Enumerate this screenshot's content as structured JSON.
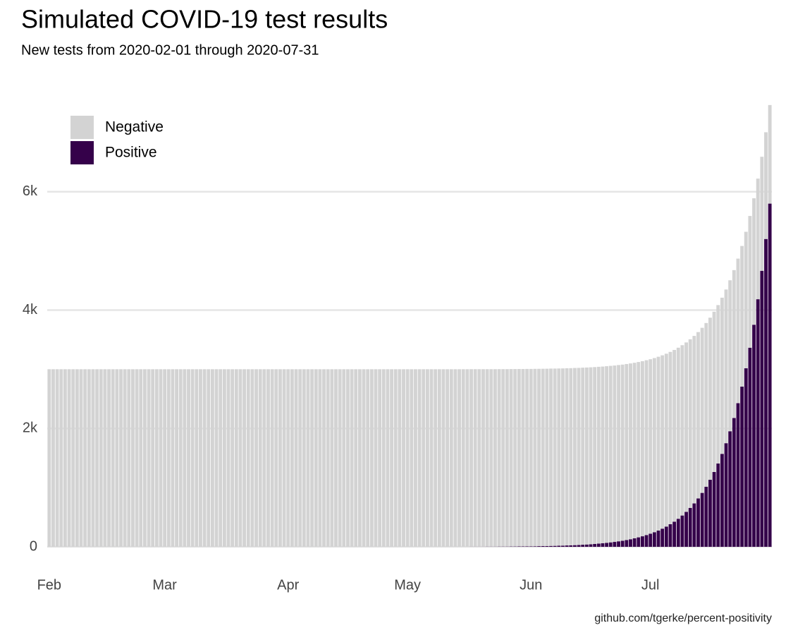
{
  "chart_data": {
    "type": "stacked-bar",
    "title": "Simulated COVID-19 test results",
    "subtitle": "New tests from 2020-02-01 through 2020-07-31",
    "caption": "github.com/tgerke/percent-positivity",
    "categories": [
      "Feb",
      null,
      null,
      null,
      null,
      null,
      null,
      null,
      null,
      null,
      null,
      null,
      null,
      null,
      null,
      null,
      null,
      null,
      null,
      null,
      null,
      null,
      null,
      null,
      null,
      null,
      null,
      null,
      null,
      "Mar",
      null,
      null,
      null,
      null,
      null,
      null,
      null,
      null,
      null,
      null,
      null,
      null,
      null,
      null,
      null,
      null,
      null,
      null,
      null,
      null,
      null,
      null,
      null,
      null,
      null,
      null,
      null,
      null,
      null,
      null,
      "Apr",
      null,
      null,
      null,
      null,
      null,
      null,
      null,
      null,
      null,
      null,
      null,
      null,
      null,
      null,
      null,
      null,
      null,
      null,
      null,
      null,
      null,
      null,
      null,
      null,
      null,
      null,
      null,
      null,
      null,
      "May",
      null,
      null,
      null,
      null,
      null,
      null,
      null,
      null,
      null,
      null,
      null,
      null,
      null,
      null,
      null,
      null,
      null,
      null,
      null,
      null,
      null,
      null,
      null,
      null,
      null,
      null,
      null,
      null,
      null,
      null,
      "Jun",
      null,
      null,
      null,
      null,
      null,
      null,
      null,
      null,
      null,
      null,
      null,
      null,
      null,
      null,
      null,
      null,
      null,
      null,
      null,
      null,
      null,
      null,
      null,
      null,
      null,
      null,
      null,
      null,
      null,
      "Jul",
      null,
      null,
      null,
      null,
      null,
      null,
      null,
      null,
      null,
      null,
      null,
      null,
      null,
      null,
      null,
      null,
      null,
      null,
      null,
      null,
      null,
      null,
      null,
      null,
      null,
      null,
      null,
      null,
      null,
      null
    ],
    "series": [
      {
        "name": "Negative",
        "color": "#d3d3d3",
        "values": [
          3000,
          3000,
          3000,
          3000,
          3000,
          3000,
          3000,
          3000,
          3000,
          3000,
          3000,
          3000,
          3000,
          3000,
          3000,
          3000,
          3000,
          3000,
          3000,
          3000,
          3000,
          3000,
          3000,
          3000,
          3000,
          3000,
          3000,
          3000,
          3000,
          3000,
          3000,
          3000,
          3000,
          3000,
          3000,
          3000,
          3000,
          3000,
          3000,
          3000,
          3000,
          3000,
          3000,
          3000,
          3000,
          3000,
          3000,
          3000,
          3000,
          3000,
          3000,
          3000,
          3000,
          3000,
          3000,
          3000,
          3000,
          3000,
          3000,
          3000,
          3000,
          3000,
          3000,
          3000,
          3000,
          3000,
          3000,
          3000,
          3000,
          3000,
          3000,
          3000,
          3000,
          3000,
          3000,
          3000,
          3000,
          3000,
          3000,
          3000,
          3000,
          3000,
          3000,
          3000,
          3000,
          3000,
          3000,
          3000,
          3000,
          3000,
          3000,
          3000,
          3000,
          3000,
          3000,
          3000,
          3000,
          3000,
          3000,
          3000,
          3000,
          3000,
          3000,
          3000,
          3000,
          3000,
          3000,
          3000,
          3000,
          3000,
          2999,
          2999,
          2999,
          2999,
          2999,
          2999,
          2999,
          2999,
          2999,
          2998,
          2998,
          2998,
          2998,
          2997,
          2997,
          2997,
          2997,
          2996,
          2996,
          2995,
          2995,
          2994,
          2994,
          2993,
          2992,
          2991,
          2990,
          2989,
          2988,
          2986,
          2985,
          2983,
          2981,
          2979,
          2976,
          2974,
          2971,
          2967,
          2963,
          2959,
          2954,
          2949,
          2943,
          2937,
          2929,
          2921,
          2912,
          2902,
          2891,
          2878,
          2864,
          2849,
          2831,
          2812,
          2790,
          2766,
          2739,
          2709,
          2676,
          2639,
          2597,
          2551,
          2499,
          2442,
          2377,
          2306,
          2226,
          2137,
          2038,
          1927,
          1804,
          1666
        ]
      },
      {
        "name": "Positive",
        "color": "#35014a",
        "values": [
          1,
          1,
          1,
          1,
          1,
          1,
          1,
          1,
          1,
          1,
          1,
          1,
          1,
          1,
          1,
          1,
          1,
          1,
          1,
          1,
          1,
          1,
          1,
          1,
          1,
          1,
          1,
          1,
          1,
          1,
          1,
          1,
          1,
          1,
          1,
          1,
          1,
          1,
          1,
          1,
          1,
          1,
          1,
          1,
          1,
          1,
          1,
          1,
          1,
          1,
          1,
          1,
          1,
          1,
          1,
          1,
          1,
          1,
          1,
          1,
          1,
          1,
          1,
          1,
          1,
          1,
          1,
          1,
          1,
          1,
          1,
          1,
          1,
          1,
          1,
          1,
          1,
          1,
          1,
          1,
          1,
          1,
          1,
          1,
          1,
          1,
          1,
          1,
          1,
          1,
          1,
          1,
          1,
          1,
          1,
          1,
          1,
          1,
          1,
          1,
          1,
          1,
          1,
          1,
          1,
          1,
          2,
          2,
          2,
          2,
          3,
          3,
          3,
          4,
          4,
          4,
          5,
          5,
          6,
          7,
          8,
          8,
          9,
          11,
          12,
          13,
          15,
          16,
          18,
          20,
          23,
          25,
          28,
          31,
          35,
          39,
          43,
          48,
          54,
          60,
          67,
          75,
          83,
          93,
          103,
          115,
          128,
          143,
          160,
          178,
          199,
          221,
          247,
          275,
          307,
          342,
          382,
          425,
          474,
          529,
          590,
          658,
          733,
          817,
          911,
          1016,
          1133,
          1264,
          1409,
          1571,
          1751,
          1953,
          2177,
          2428,
          2707,
          3018,
          3365,
          3753,
          4184,
          4665,
          5202,
          5800
        ]
      }
    ],
    "ylim": [
      0,
      7500
    ],
    "yticks": [
      0,
      {
        "value": 2000,
        "label": "2k"
      },
      {
        "value": 4000,
        "label": "4k"
      },
      {
        "value": 6000,
        "label": "6k"
      }
    ],
    "grid": true,
    "legend_position": "top-left"
  }
}
